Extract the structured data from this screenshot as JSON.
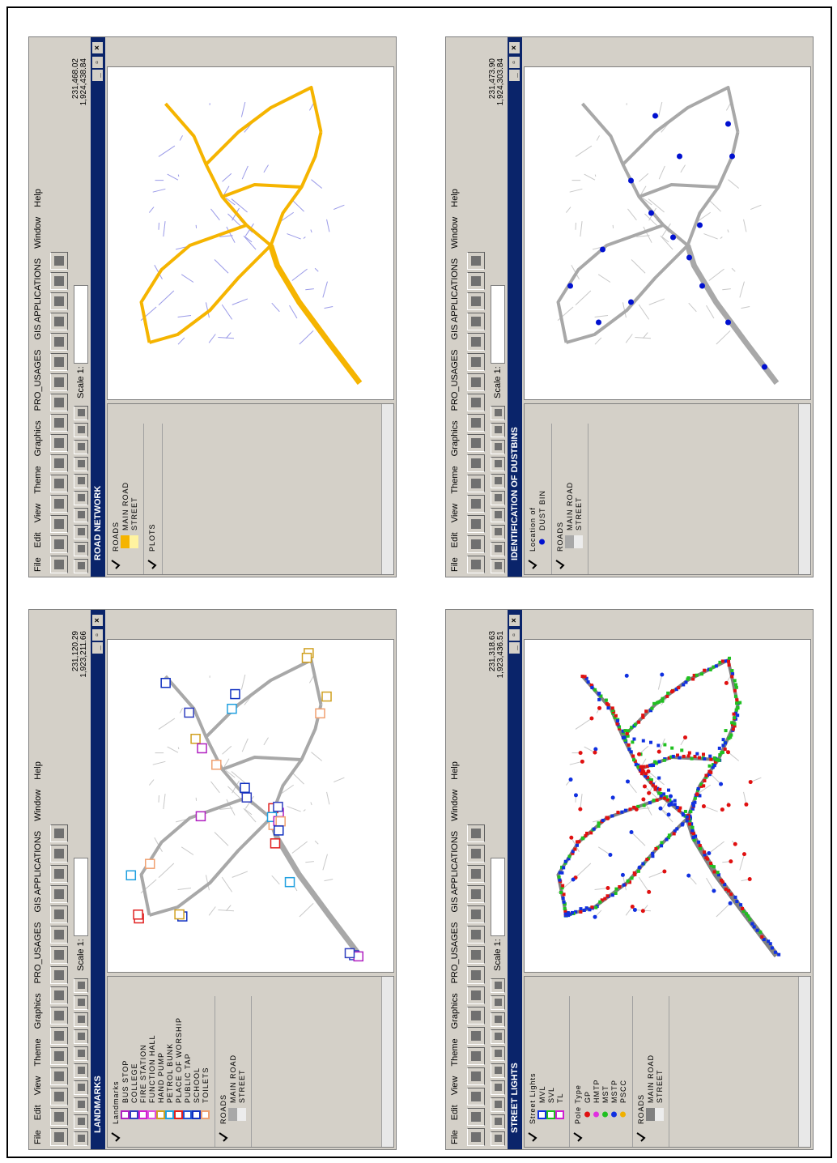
{
  "menu": [
    "File",
    "Edit",
    "View",
    "Theme",
    "Graphics",
    "PRO_USAGES",
    "GIS APPLICATIONS",
    "Window",
    "Help"
  ],
  "scale_label": "Scale 1:",
  "windows": [
    {
      "title": "ROAD NETWORK",
      "coord_x": "231,468.02",
      "coord_y": "1,924,438.84",
      "map": "roads",
      "legend": [
        {
          "name": "ROADS",
          "items": [
            {
              "label": "MAIN ROAD",
              "color": "#f5b400"
            },
            {
              "label": "STREET",
              "color": "#fff3a0"
            }
          ]
        },
        {
          "name": "PLOTS",
          "items": []
        }
      ]
    },
    {
      "title": "IDENTIFICATION OF DUSTBINS",
      "coord_x": "231,473.90",
      "coord_y": "1,924,303.84",
      "map": "dustbins",
      "legend": [
        {
          "name": "Location of",
          "items": [
            {
              "label": "DUST BIN",
              "color": "#0010d0",
              "shape": "dot"
            }
          ]
        },
        {
          "name": "ROADS",
          "items": [
            {
              "label": "MAIN ROAD",
              "color": "#a8a8a8"
            },
            {
              "label": "STREET",
              "color": "#ececec"
            }
          ]
        }
      ]
    },
    {
      "title": "LANDMARKS",
      "coord_x": "231,120.29",
      "coord_y": "1,923,211.66",
      "map": "landmarks",
      "legend": [
        {
          "name": "Landmarks",
          "items": [
            {
              "label": "BUS STOP",
              "color": "#b020c0",
              "shape": "icon"
            },
            {
              "label": "COLLEGE",
              "color": "#3040c0",
              "shape": "icon"
            },
            {
              "label": "FIRE STATION",
              "color": "#d020d0",
              "shape": "icon"
            },
            {
              "label": "FUNCTION HALL",
              "color": "#e050e0",
              "shape": "icon"
            },
            {
              "label": "HAND PUMP",
              "color": "#d0a020",
              "shape": "icon"
            },
            {
              "label": "PETROL BUNK",
              "color": "#20a0e0",
              "shape": "icon"
            },
            {
              "label": "PLACE OF WORSHIP",
              "color": "#e02020",
              "shape": "icon"
            },
            {
              "label": "PUBLIC TAP",
              "color": "#2050d0",
              "shape": "icon"
            },
            {
              "label": "SCHOOL",
              "color": "#1030c0",
              "shape": "icon"
            },
            {
              "label": "TOILETS",
              "color": "#f0a070",
              "shape": "icon"
            }
          ]
        },
        {
          "name": "ROADS",
          "items": [
            {
              "label": "MAIN ROAD",
              "color": "#a8a8a8"
            },
            {
              "label": "STREET",
              "color": "#ececec"
            }
          ]
        }
      ]
    },
    {
      "title": "STREET LIGHTS",
      "coord_x": "231,318.63",
      "coord_y": "1,923,436.51",
      "map": "lights",
      "legend": [
        {
          "name": "Street Lights",
          "items": [
            {
              "label": "MVL",
              "color": "#1030e0",
              "shape": "icon"
            },
            {
              "label": "SVL",
              "color": "#20c020",
              "shape": "icon"
            },
            {
              "label": "TL",
              "color": "#d020d0",
              "shape": "icon"
            }
          ]
        },
        {
          "name": "Pole Type",
          "items": [
            {
              "label": "GP",
              "color": "#e01010",
              "shape": "dot"
            },
            {
              "label": "HMTP",
              "color": "#e030e0",
              "shape": "dot"
            },
            {
              "label": "MST",
              "color": "#20c020",
              "shape": "dot"
            },
            {
              "label": "MSTP",
              "color": "#1030e0",
              "shape": "dot"
            },
            {
              "label": "PSCC",
              "color": "#f0b000",
              "shape": "dot"
            }
          ]
        },
        {
          "name": "ROADS",
          "items": [
            {
              "label": "MAIN ROAD",
              "color": "#808080"
            },
            {
              "label": "STREET",
              "color": "#ececec"
            }
          ]
        }
      ]
    }
  ]
}
